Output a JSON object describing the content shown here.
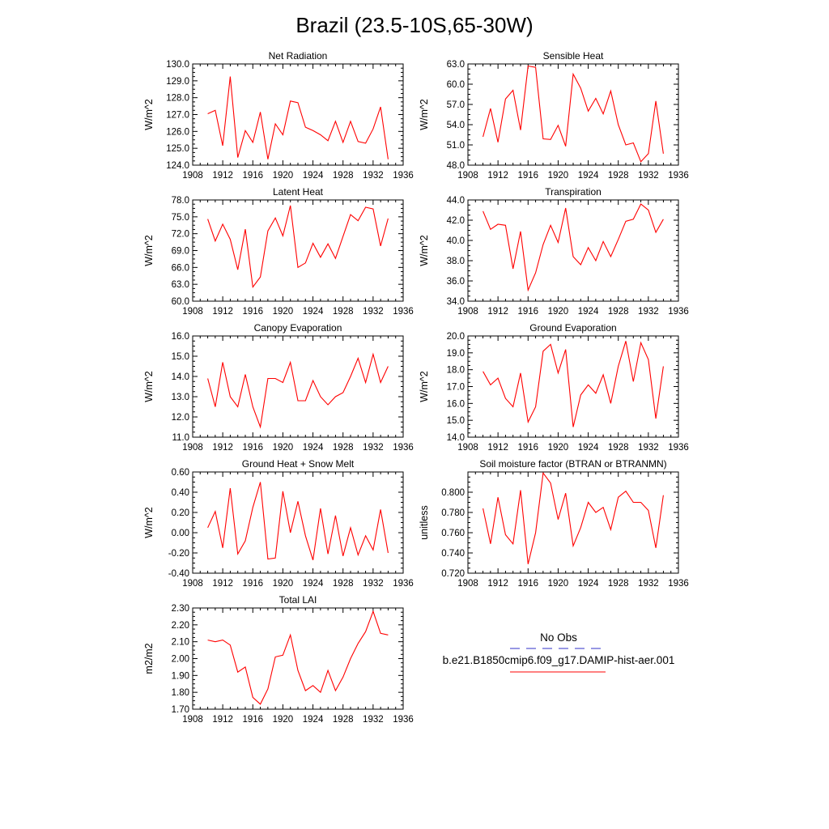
{
  "title": "Brazil (23.5-10S,65-30W)",
  "legend": {
    "entries": [
      {
        "label": "No Obs",
        "color": "#3232c8",
        "dash": true
      },
      {
        "label": "b.e21.B1850cmip6.f09_g17.DAMIP-hist-aer.001",
        "color": "#ff0000",
        "dash": false
      }
    ]
  },
  "chart_data": [
    {
      "type": "line",
      "title": "Net Radiation",
      "ylabel": "W/m^2",
      "xlim": [
        1908,
        1936
      ],
      "x_ticks": [
        1908,
        1912,
        1916,
        1920,
        1924,
        1928,
        1932,
        1936
      ],
      "ylim": [
        124.0,
        130.0
      ],
      "y_ticks": [
        "124.0",
        "125.0",
        "126.0",
        "127.0",
        "128.0",
        "129.0",
        "130.0"
      ],
      "series": [
        {
          "color": "#ff0000",
          "x": [
            1910,
            1911,
            1912,
            1913,
            1914,
            1915,
            1916,
            1917,
            1918,
            1919,
            1920,
            1921,
            1922,
            1923,
            1924,
            1925,
            1926,
            1927,
            1928,
            1929,
            1930,
            1931,
            1932,
            1933,
            1934
          ],
          "values": [
            127.05,
            127.25,
            125.15,
            129.25,
            124.45,
            126.05,
            125.35,
            127.15,
            124.35,
            126.45,
            125.8,
            127.8,
            127.7,
            126.25,
            126.05,
            125.8,
            125.45,
            126.6,
            125.35,
            126.6,
            125.4,
            125.3,
            126.15,
            127.45,
            124.35
          ]
        }
      ]
    },
    {
      "type": "line",
      "title": "Sensible Heat",
      "ylabel": "W/m^2",
      "xlim": [
        1908,
        1936
      ],
      "x_ticks": [
        1908,
        1912,
        1916,
        1920,
        1924,
        1928,
        1932,
        1936
      ],
      "ylim": [
        48.0,
        63.0
      ],
      "y_ticks": [
        "48.0",
        "51.0",
        "54.0",
        "57.0",
        "60.0",
        "63.0"
      ],
      "series": [
        {
          "color": "#ff0000",
          "x": [
            1910,
            1911,
            1912,
            1913,
            1914,
            1915,
            1916,
            1917,
            1918,
            1919,
            1920,
            1921,
            1922,
            1923,
            1924,
            1925,
            1926,
            1927,
            1928,
            1929,
            1930,
            1931,
            1932,
            1933,
            1934
          ],
          "values": [
            52.2,
            56.4,
            51.4,
            57.8,
            59.1,
            53.2,
            62.7,
            62.5,
            51.9,
            51.8,
            53.9,
            50.8,
            61.5,
            59.4,
            56.0,
            57.9,
            55.6,
            59.0,
            54.0,
            51.0,
            51.3,
            48.5,
            49.7,
            57.5,
            49.7
          ]
        }
      ]
    },
    {
      "type": "line",
      "title": "Latent Heat",
      "ylabel": "W/m^2",
      "xlim": [
        1908,
        1936
      ],
      "x_ticks": [
        1908,
        1912,
        1916,
        1920,
        1924,
        1928,
        1932,
        1936
      ],
      "ylim": [
        60.0,
        78.0
      ],
      "y_ticks": [
        "60.0",
        "63.0",
        "66.0",
        "69.0",
        "72.0",
        "75.0",
        "78.0"
      ],
      "series": [
        {
          "color": "#ff0000",
          "x": [
            1910,
            1911,
            1912,
            1913,
            1914,
            1915,
            1916,
            1917,
            1918,
            1919,
            1920,
            1921,
            1922,
            1923,
            1924,
            1925,
            1926,
            1927,
            1928,
            1929,
            1930,
            1931,
            1932,
            1933,
            1934
          ],
          "values": [
            74.6,
            70.7,
            73.7,
            71.0,
            65.6,
            72.8,
            62.5,
            64.3,
            72.5,
            74.8,
            71.6,
            77.0,
            66.0,
            66.8,
            70.3,
            67.8,
            70.2,
            67.6,
            71.5,
            75.4,
            74.3,
            76.7,
            76.4,
            69.8,
            74.7
          ]
        }
      ]
    },
    {
      "type": "line",
      "title": "Transpiration",
      "ylabel": "W/m^2",
      "xlim": [
        1908,
        1936
      ],
      "x_ticks": [
        1908,
        1912,
        1916,
        1920,
        1924,
        1928,
        1932,
        1936
      ],
      "ylim": [
        34.0,
        44.0
      ],
      "y_ticks": [
        "34.0",
        "36.0",
        "38.0",
        "40.0",
        "42.0",
        "44.0"
      ],
      "series": [
        {
          "color": "#ff0000",
          "x": [
            1910,
            1911,
            1912,
            1913,
            1914,
            1915,
            1916,
            1917,
            1918,
            1919,
            1920,
            1921,
            1922,
            1923,
            1924,
            1925,
            1926,
            1927,
            1928,
            1929,
            1930,
            1931,
            1932,
            1933,
            1934
          ],
          "values": [
            42.9,
            41.1,
            41.6,
            41.5,
            37.2,
            40.9,
            35.1,
            36.8,
            39.6,
            41.5,
            39.8,
            43.2,
            38.4,
            37.6,
            39.3,
            38.0,
            39.9,
            38.4,
            40.1,
            41.9,
            42.1,
            43.6,
            43.0,
            40.8,
            42.1
          ]
        }
      ]
    },
    {
      "type": "line",
      "title": "Canopy Evaporation",
      "ylabel": "W/m^2",
      "xlim": [
        1908,
        1936
      ],
      "x_ticks": [
        1908,
        1912,
        1916,
        1920,
        1924,
        1928,
        1932,
        1936
      ],
      "ylim": [
        11.0,
        16.0
      ],
      "y_ticks": [
        "11.0",
        "12.0",
        "13.0",
        "14.0",
        "15.0",
        "16.0"
      ],
      "series": [
        {
          "color": "#ff0000",
          "x": [
            1910,
            1911,
            1912,
            1913,
            1914,
            1915,
            1916,
            1917,
            1918,
            1919,
            1920,
            1921,
            1922,
            1923,
            1924,
            1925,
            1926,
            1927,
            1928,
            1929,
            1930,
            1931,
            1932,
            1933,
            1934
          ],
          "values": [
            13.9,
            12.5,
            14.7,
            13.0,
            12.5,
            14.1,
            12.5,
            11.5,
            13.9,
            13.9,
            13.7,
            14.7,
            12.8,
            12.8,
            13.8,
            13.0,
            12.6,
            13.0,
            13.2,
            14.0,
            14.9,
            13.7,
            15.1,
            13.7,
            14.5
          ]
        }
      ]
    },
    {
      "type": "line",
      "title": "Ground Evaporation",
      "ylabel": "W/m^2",
      "xlim": [
        1908,
        1936
      ],
      "x_ticks": [
        1908,
        1912,
        1916,
        1920,
        1924,
        1928,
        1932,
        1936
      ],
      "ylim": [
        14.0,
        20.0
      ],
      "y_ticks": [
        "14.0",
        "15.0",
        "16.0",
        "17.0",
        "18.0",
        "19.0",
        "20.0"
      ],
      "series": [
        {
          "color": "#ff0000",
          "x": [
            1910,
            1911,
            1912,
            1913,
            1914,
            1915,
            1916,
            1917,
            1918,
            1919,
            1920,
            1921,
            1922,
            1923,
            1924,
            1925,
            1926,
            1927,
            1928,
            1929,
            1930,
            1931,
            1932,
            1933,
            1934
          ],
          "values": [
            17.9,
            17.1,
            17.5,
            16.3,
            15.8,
            17.8,
            14.9,
            15.8,
            19.1,
            19.5,
            17.8,
            19.2,
            14.6,
            16.5,
            17.1,
            16.6,
            17.7,
            16.0,
            18.2,
            19.7,
            17.3,
            19.6,
            18.6,
            15.1,
            18.2
          ]
        }
      ]
    },
    {
      "type": "line",
      "title": "Ground Heat + Snow Melt",
      "ylabel": "W/m^2",
      "xlim": [
        1908,
        1936
      ],
      "x_ticks": [
        1908,
        1912,
        1916,
        1920,
        1924,
        1928,
        1932,
        1936
      ],
      "ylim": [
        -0.4,
        0.6
      ],
      "y_ticks": [
        "-0.40",
        "-0.20",
        "0.00",
        "0.20",
        "0.40",
        "0.60"
      ],
      "series": [
        {
          "color": "#ff0000",
          "x": [
            1910,
            1911,
            1912,
            1913,
            1914,
            1915,
            1916,
            1917,
            1918,
            1919,
            1920,
            1921,
            1922,
            1923,
            1924,
            1925,
            1926,
            1927,
            1928,
            1929,
            1930,
            1931,
            1932,
            1933,
            1934
          ],
          "values": [
            0.05,
            0.21,
            -0.15,
            0.44,
            -0.21,
            -0.08,
            0.25,
            0.5,
            -0.26,
            -0.25,
            0.41,
            0.0,
            0.31,
            -0.03,
            -0.27,
            0.24,
            -0.21,
            0.17,
            -0.23,
            0.05,
            -0.22,
            -0.03,
            -0.17,
            0.23,
            -0.2
          ]
        }
      ]
    },
    {
      "type": "line",
      "title": "Soil moisture factor (BTRAN or BTRANMN)",
      "ylabel": "unitless",
      "xlim": [
        1908,
        1936
      ],
      "x_ticks": [
        1908,
        1912,
        1916,
        1920,
        1924,
        1928,
        1932,
        1936
      ],
      "ylim": [
        0.72,
        0.82
      ],
      "y_ticks": [
        "0.720",
        "0.740",
        "0.760",
        "0.780",
        "0.800"
      ],
      "series": [
        {
          "color": "#ff0000",
          "x": [
            1910,
            1911,
            1912,
            1913,
            1914,
            1915,
            1916,
            1917,
            1918,
            1919,
            1920,
            1921,
            1922,
            1923,
            1924,
            1925,
            1926,
            1927,
            1928,
            1929,
            1930,
            1931,
            1932,
            1933,
            1934
          ],
          "values": [
            0.784,
            0.749,
            0.795,
            0.758,
            0.749,
            0.802,
            0.729,
            0.76,
            0.819,
            0.809,
            0.773,
            0.799,
            0.747,
            0.765,
            0.79,
            0.78,
            0.785,
            0.763,
            0.795,
            0.801,
            0.79,
            0.79,
            0.782,
            0.745,
            0.797
          ]
        }
      ]
    },
    {
      "type": "line",
      "title": "Total LAI",
      "ylabel": "m2/m2",
      "xlim": [
        1908,
        1936
      ],
      "x_ticks": [
        1908,
        1912,
        1916,
        1920,
        1924,
        1928,
        1932,
        1936
      ],
      "ylim": [
        1.7,
        2.3
      ],
      "y_ticks": [
        "1.70",
        "1.80",
        "1.90",
        "2.00",
        "2.10",
        "2.20",
        "2.30"
      ],
      "series": [
        {
          "color": "#ff0000",
          "x": [
            1910,
            1911,
            1912,
            1913,
            1914,
            1915,
            1916,
            1917,
            1918,
            1919,
            1920,
            1921,
            1922,
            1923,
            1924,
            1925,
            1926,
            1927,
            1928,
            1929,
            1930,
            1931,
            1932,
            1933,
            1934
          ],
          "values": [
            2.11,
            2.1,
            2.11,
            2.08,
            1.92,
            1.95,
            1.77,
            1.73,
            1.82,
            2.01,
            2.02,
            2.14,
            1.93,
            1.81,
            1.84,
            1.8,
            1.93,
            1.81,
            1.89,
            2.0,
            2.09,
            2.16,
            2.28,
            2.15,
            2.14
          ]
        }
      ]
    }
  ]
}
